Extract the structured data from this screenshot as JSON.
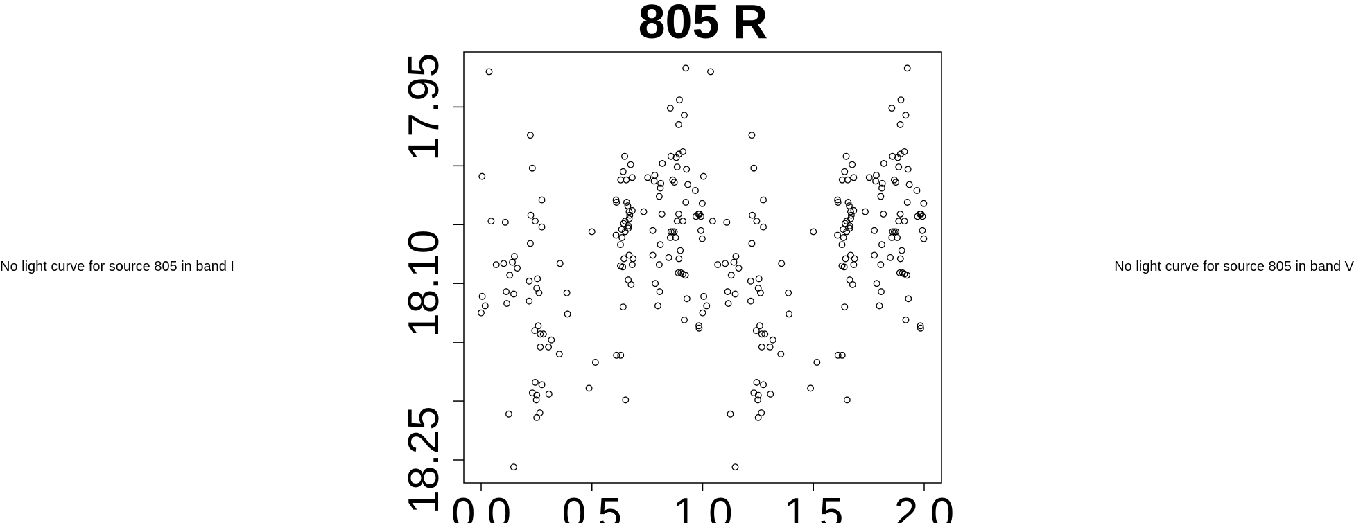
{
  "left_panel": {
    "message": "No light curve for source 805 in band I"
  },
  "right_panel": {
    "message": "No light curve for source 805 in band V"
  },
  "chart_data": {
    "type": "scatter",
    "title": "805 R",
    "xlabel": "",
    "ylabel": "",
    "xlim": [
      -0.04,
      2.04
    ],
    "ylim": [
      18.27,
      17.903
    ],
    "y_inverted": true,
    "x_ticks": [
      "0.0",
      "0.5",
      "1.0",
      "1.5",
      "2.0"
    ],
    "x_tick_values": [
      0,
      0.5,
      1.0,
      1.5,
      2.0
    ],
    "y_ticks": [
      17.95,
      18.0,
      18.05,
      18.1,
      18.15,
      18.2,
      18.25
    ],
    "y_tick_labels": [
      "17.95",
      "18.10",
      "18.25"
    ],
    "y_tick_label_values": [
      17.95,
      18.1,
      18.25
    ],
    "marker": "open-circle",
    "grid": false,
    "phase_repeated": true,
    "points": [
      [
        0.036,
        17.92
      ],
      [
        0.004,
        18.009
      ],
      [
        0.045,
        18.047
      ],
      [
        0.109,
        18.048
      ],
      [
        0.005,
        18.111
      ],
      [
        0.018,
        18.119
      ],
      [
        0.0,
        18.125
      ],
      [
        0.068,
        18.084
      ],
      [
        0.102,
        18.083
      ],
      [
        0.141,
        18.082
      ],
      [
        0.15,
        18.077
      ],
      [
        0.163,
        18.087
      ],
      [
        0.129,
        18.093
      ],
      [
        0.113,
        18.107
      ],
      [
        0.147,
        18.109
      ],
      [
        0.116,
        18.117
      ],
      [
        0.125,
        18.211
      ],
      [
        0.147,
        18.256
      ],
      [
        0.222,
        17.974
      ],
      [
        0.231,
        18.002
      ],
      [
        0.274,
        18.029
      ],
      [
        0.224,
        18.042
      ],
      [
        0.244,
        18.047
      ],
      [
        0.274,
        18.052
      ],
      [
        0.222,
        18.066
      ],
      [
        0.217,
        18.098
      ],
      [
        0.254,
        18.096
      ],
      [
        0.251,
        18.104
      ],
      [
        0.261,
        18.108
      ],
      [
        0.217,
        18.115
      ],
      [
        0.258,
        18.136
      ],
      [
        0.242,
        18.14
      ],
      [
        0.267,
        18.143
      ],
      [
        0.281,
        18.143
      ],
      [
        0.317,
        18.148
      ],
      [
        0.267,
        18.154
      ],
      [
        0.304,
        18.154
      ],
      [
        0.353,
        18.16
      ],
      [
        0.356,
        18.083
      ],
      [
        0.387,
        18.108
      ],
      [
        0.39,
        18.126
      ],
      [
        0.244,
        18.184
      ],
      [
        0.274,
        18.186
      ],
      [
        0.231,
        18.193
      ],
      [
        0.251,
        18.195
      ],
      [
        0.249,
        18.199
      ],
      [
        0.306,
        18.194
      ],
      [
        0.265,
        18.21
      ],
      [
        0.251,
        18.214
      ],
      [
        0.5,
        18.056
      ],
      [
        0.516,
        18.167
      ],
      [
        0.487,
        18.189
      ],
      [
        0.611,
        18.161
      ],
      [
        0.63,
        18.161
      ],
      [
        0.652,
        18.199
      ],
      [
        0.609,
        18.029
      ],
      [
        0.611,
        18.031
      ],
      [
        0.648,
        17.992
      ],
      [
        0.675,
        17.999
      ],
      [
        0.641,
        18.005
      ],
      [
        0.63,
        18.012
      ],
      [
        0.655,
        18.012
      ],
      [
        0.682,
        18.01
      ],
      [
        0.657,
        18.031
      ],
      [
        0.662,
        18.034
      ],
      [
        0.668,
        18.039
      ],
      [
        0.682,
        18.038
      ],
      [
        0.671,
        18.042
      ],
      [
        0.643,
        18.049
      ],
      [
        0.65,
        18.047
      ],
      [
        0.668,
        18.045
      ],
      [
        0.664,
        18.051
      ],
      [
        0.664,
        18.053
      ],
      [
        0.634,
        18.054
      ],
      [
        0.65,
        18.056
      ],
      [
        0.609,
        18.059
      ],
      [
        0.636,
        18.061
      ],
      [
        0.629,
        18.067
      ],
      [
        0.645,
        18.079
      ],
      [
        0.668,
        18.076
      ],
      [
        0.686,
        18.079
      ],
      [
        0.629,
        18.085
      ],
      [
        0.639,
        18.086
      ],
      [
        0.682,
        18.084
      ],
      [
        0.664,
        18.097
      ],
      [
        0.677,
        18.101
      ],
      [
        0.641,
        18.12
      ],
      [
        0.734,
        18.039
      ],
      [
        0.752,
        18.01
      ],
      [
        0.784,
        18.008
      ],
      [
        0.781,
        18.013
      ],
      [
        0.811,
        18.015
      ],
      [
        0.809,
        18.019
      ],
      [
        0.818,
        17.998
      ],
      [
        0.804,
        18.026
      ],
      [
        0.775,
        18.055
      ],
      [
        0.816,
        18.041
      ],
      [
        0.809,
        18.067
      ],
      [
        0.775,
        18.076
      ],
      [
        0.804,
        18.084
      ],
      [
        0.847,
        18.078
      ],
      [
        0.786,
        18.1
      ],
      [
        0.806,
        18.107
      ],
      [
        0.798,
        18.119
      ],
      [
        0.854,
        17.951
      ],
      [
        0.895,
        17.944
      ],
      [
        0.917,
        17.957
      ],
      [
        0.892,
        17.965
      ],
      [
        0.924,
        17.917
      ],
      [
        0.857,
        17.992
      ],
      [
        0.881,
        17.993
      ],
      [
        0.893,
        17.99
      ],
      [
        0.911,
        17.988
      ],
      [
        0.885,
        18.001
      ],
      [
        0.927,
        18.003
      ],
      [
        0.865,
        18.012
      ],
      [
        0.872,
        18.014
      ],
      [
        0.933,
        18.016
      ],
      [
        0.967,
        18.021
      ],
      [
        0.924,
        18.031
      ],
      [
        0.998,
        18.032
      ],
      [
        0.892,
        18.041
      ],
      [
        0.97,
        18.043
      ],
      [
        0.981,
        18.041
      ],
      [
        0.992,
        18.043
      ],
      [
        0.986,
        18.041
      ],
      [
        0.885,
        18.047
      ],
      [
        0.911,
        18.047
      ],
      [
        0.857,
        18.056
      ],
      [
        0.872,
        18.056
      ],
      [
        0.865,
        18.056
      ],
      [
        0.854,
        18.061
      ],
      [
        0.878,
        18.061
      ],
      [
        0.992,
        18.055
      ],
      [
        0.998,
        18.062
      ],
      [
        0.899,
        18.072
      ],
      [
        0.893,
        18.079
      ],
      [
        0.89,
        18.091
      ],
      [
        0.902,
        18.091
      ],
      [
        0.911,
        18.092
      ],
      [
        0.922,
        18.093
      ],
      [
        0.929,
        18.113
      ],
      [
        0.917,
        18.131
      ],
      [
        0.983,
        18.136
      ],
      [
        0.984,
        18.138
      ]
    ]
  }
}
